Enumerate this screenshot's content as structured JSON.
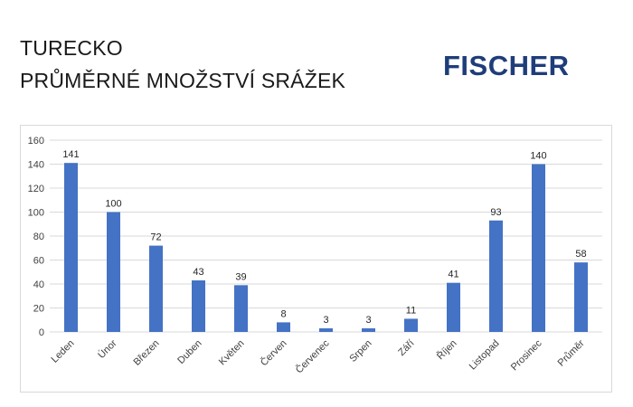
{
  "header": {
    "title_line1": "TURECKO",
    "title_line2": "PRŮMĚRNÉ MNOŽSTVÍ SRÁŽEK",
    "logo_text": "FISCHER"
  },
  "colors": {
    "bar": "#4472c4",
    "grid": "#d9d9d9",
    "logo": "#1f3d7a"
  },
  "chart_data": {
    "type": "bar",
    "categories": [
      "Leden",
      "Únor",
      "Březen",
      "Duben",
      "Květen",
      "Červen",
      "Červenec",
      "Srpen",
      "Září",
      "Říjen",
      "Listopad",
      "Prosinec",
      "Průměr"
    ],
    "values": [
      141,
      100,
      72,
      43,
      39,
      8,
      3,
      3,
      11,
      41,
      93,
      140,
      58
    ],
    "data_labels": [
      "141",
      "100",
      "72",
      "43",
      "39",
      "8",
      "3",
      "3",
      "11",
      "41",
      "93",
      "140",
      "58"
    ],
    "yticks": [
      "0",
      "20",
      "40",
      "60",
      "80",
      "100",
      "120",
      "140",
      "160"
    ],
    "ylim": [
      0,
      160
    ],
    "grid": true,
    "legend": "none"
  }
}
